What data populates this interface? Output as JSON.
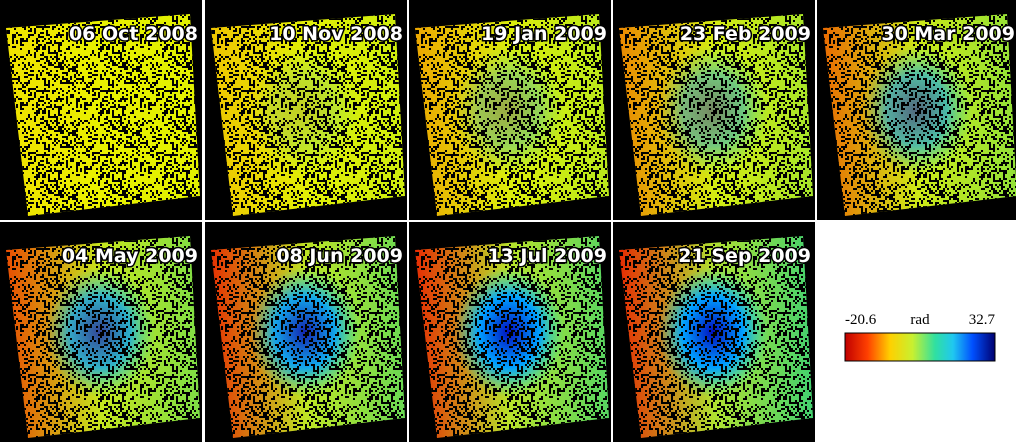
{
  "panels": [
    {
      "date": "06 Oct 2008"
    },
    {
      "date": "10 Nov 2008"
    },
    {
      "date": "19 Jan 2009"
    },
    {
      "date": "23 Feb 2009"
    },
    {
      "date": "30 Mar 2009"
    },
    {
      "date": "04 May 2009"
    },
    {
      "date": "08 Jun 2009"
    },
    {
      "date": "13 Jul 2009"
    },
    {
      "date": "21 Sep 2009"
    }
  ],
  "colorbar": {
    "min": -20.6,
    "unit": "rad",
    "max": 32.7
  }
}
